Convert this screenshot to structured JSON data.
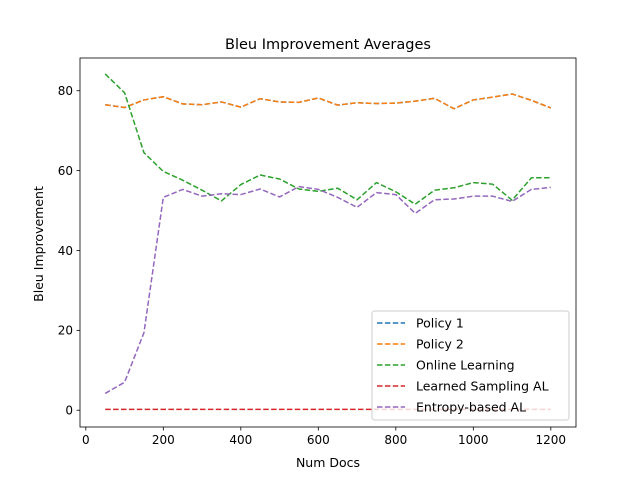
{
  "chart_data": {
    "type": "line",
    "title": "Bleu Improvement Averages",
    "xlabel": "Num Docs",
    "ylabel": "Bleu Improvement",
    "xlim": [
      -15,
      1265
    ],
    "ylim": [
      -4.2,
      88.2
    ],
    "xticks": [
      0,
      200,
      400,
      600,
      800,
      1000,
      1200
    ],
    "yticks": [
      0,
      20,
      40,
      60,
      80
    ],
    "grid": false,
    "legend_position": "lower-right",
    "line_style": "dashed",
    "x": [
      50,
      100,
      150,
      200,
      250,
      300,
      350,
      400,
      450,
      500,
      550,
      600,
      650,
      700,
      750,
      800,
      850,
      900,
      950,
      1000,
      1050,
      1100,
      1150,
      1200
    ],
    "series": [
      {
        "name": "Policy 1",
        "color": "#1f77b4",
        "values": [
          76.5,
          75.8,
          77.7,
          78.5,
          76.7,
          76.5,
          77.2,
          75.9,
          78.0,
          77.2,
          77.1,
          78.2,
          76.4,
          77.0,
          76.8,
          76.9,
          77.4,
          78.1,
          75.5,
          77.7,
          78.4,
          79.2,
          77.6,
          75.7
        ]
      },
      {
        "name": "Policy 2",
        "color": "#ff7f0e",
        "values": [
          76.5,
          75.8,
          77.7,
          78.5,
          76.7,
          76.5,
          77.2,
          75.9,
          78.0,
          77.2,
          77.1,
          78.2,
          76.4,
          77.0,
          76.8,
          76.9,
          77.4,
          78.1,
          75.5,
          77.7,
          78.4,
          79.2,
          77.6,
          75.7
        ]
      },
      {
        "name": "Online Learning",
        "color": "#2ca02c",
        "values": [
          84.2,
          79.5,
          64.5,
          59.8,
          57.6,
          55.1,
          52.4,
          56.5,
          58.9,
          57.9,
          55.4,
          54.8,
          55.6,
          52.7,
          57.0,
          54.7,
          51.6,
          55.1,
          55.7,
          57.0,
          56.6,
          52.6,
          58.2,
          58.2
        ]
      },
      {
        "name": "Learned Sampling AL",
        "color": "#d62728",
        "values": [
          0.2,
          0.2,
          0.2,
          0.2,
          0.2,
          0.2,
          0.2,
          0.2,
          0.2,
          0.2,
          0.2,
          0.2,
          0.2,
          0.2,
          0.2,
          0.2,
          0.2,
          0.2,
          0.2,
          0.2,
          0.2,
          0.2,
          0.2,
          0.2
        ]
      },
      {
        "name": "Entropy-based AL",
        "color": "#9467bd",
        "values": [
          4.2,
          7.0,
          19.4,
          53.3,
          55.3,
          53.6,
          54.2,
          54.0,
          55.4,
          53.4,
          56.0,
          55.3,
          53.3,
          50.8,
          54.5,
          54.0,
          49.3,
          52.7,
          52.9,
          53.6,
          53.6,
          52.3,
          55.3,
          55.8
        ]
      }
    ]
  }
}
